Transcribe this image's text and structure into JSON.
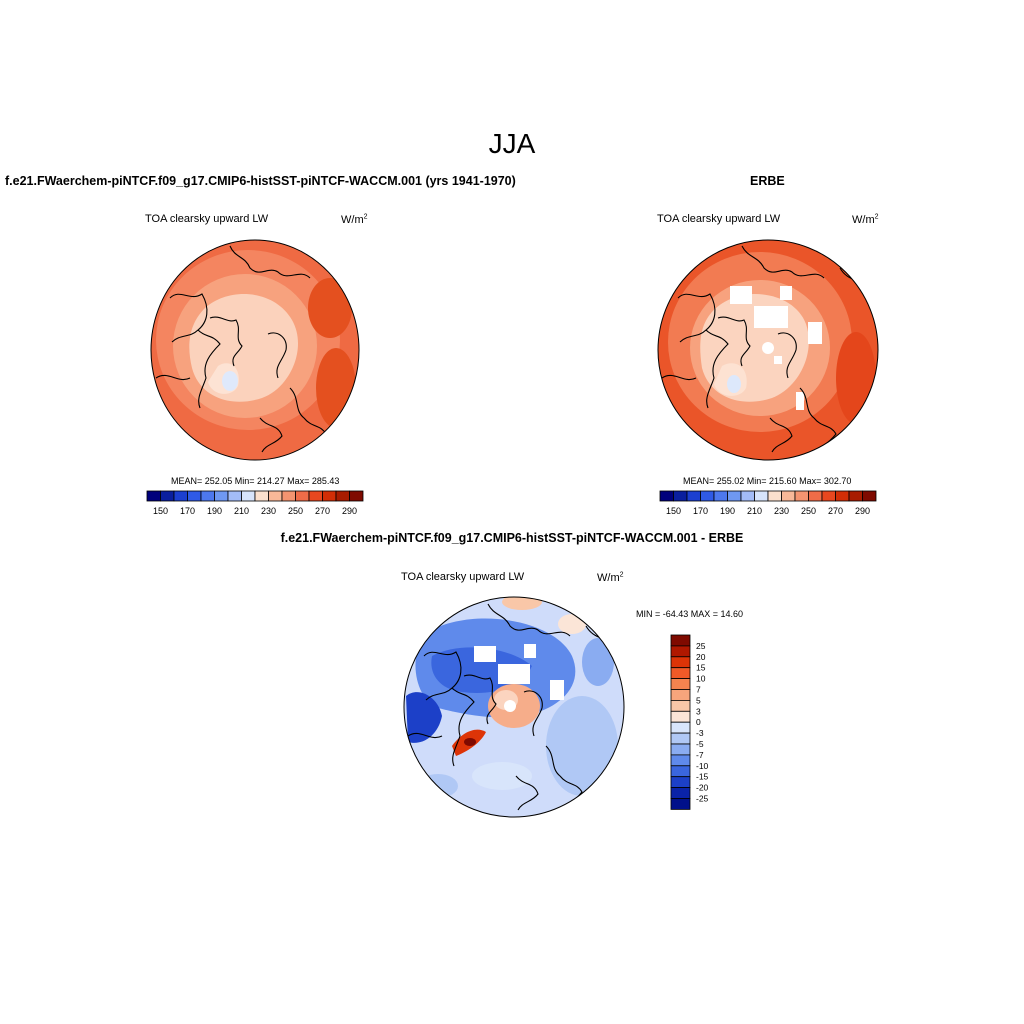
{
  "title": "JJA",
  "panels": [
    {
      "case_title": "f.e21.FWaerchem-piNTCF.f09_g17.CMIP6-histSST-piNTCF-WACCM.001 (yrs 1941-1970)",
      "variable": "TOA clearsky upward LW",
      "units_base": "W/m",
      "units_exp": "2",
      "stats": "MEAN= 252.05  Min= 214.27  Max= 285.43",
      "colorbar_ticks": [
        "150",
        "170",
        "190",
        "210",
        "230",
        "250",
        "270",
        "290"
      ]
    },
    {
      "case_title": "ERBE",
      "variable": "TOA clearsky upward LW",
      "units_base": "W/m",
      "units_exp": "2",
      "stats": "MEAN= 255.02  Min= 215.60  Max= 302.70",
      "colorbar_ticks": [
        "150",
        "170",
        "190",
        "210",
        "230",
        "250",
        "270",
        "290"
      ]
    }
  ],
  "diff": {
    "case_title": "f.e21.FWaerchem-piNTCF.f09_g17.CMIP6-histSST-piNTCF-WACCM.001 - ERBE",
    "variable": "TOA clearsky upward LW",
    "units_base": "W/m",
    "units_exp": "2",
    "stats": "MIN = -64.43 MAX =  14.60",
    "colorbar_ticks": [
      "25",
      "20",
      "15",
      "10",
      "7",
      "5",
      "3",
      "0",
      "-3",
      "-5",
      "-7",
      "-10",
      "-15",
      "-20",
      "-25"
    ]
  },
  "colors": {
    "abs_scale": [
      "#00007c",
      "#0a1f9e",
      "#1c3fd0",
      "#2f5ae6",
      "#4d78ee",
      "#6f98f2",
      "#a3bcf7",
      "#d7e4fb",
      "#fbe0cd",
      "#f8b898",
      "#f49470",
      "#ef6c48",
      "#e8471f",
      "#d22e06",
      "#a81c00",
      "#7f0a00"
    ],
    "diff_scale": [
      "#7f0a00",
      "#b01800",
      "#dd3407",
      "#f05a28",
      "#f4834f",
      "#f7a57c",
      "#f9c7a8",
      "#fbe5d7",
      "#d8e5fb",
      "#b0c8f5",
      "#8aacf1",
      "#5f8aeb",
      "#3a66de",
      "#1c40c8",
      "#0a23a8",
      "#00108a"
    ],
    "land_tint": "#fde2d2",
    "ocean_warm": "#ef6a43"
  },
  "icons": [
    "polar-stereographic-map",
    "coastline-outline"
  ]
}
